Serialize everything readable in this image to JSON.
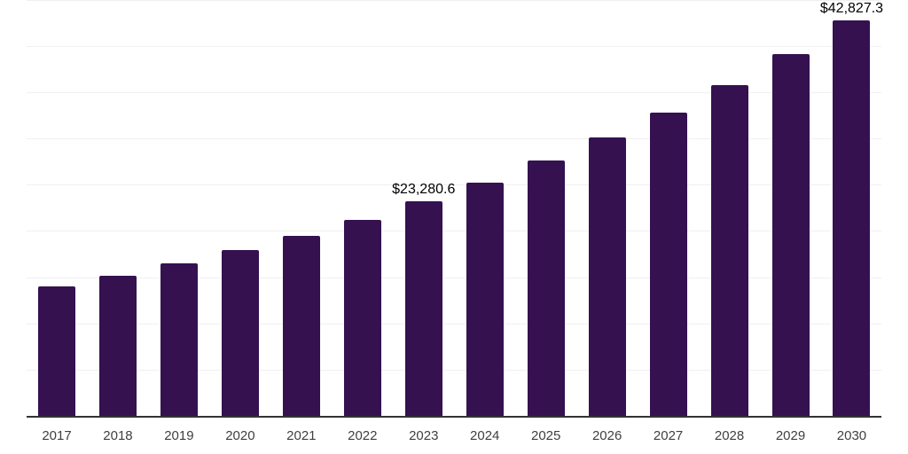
{
  "chart_data": {
    "type": "bar",
    "title": "",
    "xlabel": "",
    "ylabel": "",
    "categories": [
      "2017",
      "2018",
      "2019",
      "2020",
      "2021",
      "2022",
      "2023",
      "2024",
      "2025",
      "2026",
      "2027",
      "2028",
      "2029",
      "2030"
    ],
    "values": [
      14080,
      15230,
      16620,
      18010,
      19550,
      21300,
      23280.6,
      25320,
      27690,
      30180,
      32860,
      35880,
      39190,
      42827.3
    ],
    "value_labels": [
      {
        "index": 6,
        "text": "$23,280.6"
      },
      {
        "index": 13,
        "text": "$42,827.3"
      }
    ],
    "ylim": [
      0,
      45000
    ],
    "gridline_step": 5000,
    "grid": "horizontal-only",
    "y_tick_labels": "none",
    "legend": "none"
  },
  "colors": {
    "background": "#ffffff",
    "bar": "#351150",
    "gridline": "#f0f0f0",
    "axis_line": "#333333",
    "x_label": "#3f3f3f",
    "value_label": "#000000"
  }
}
